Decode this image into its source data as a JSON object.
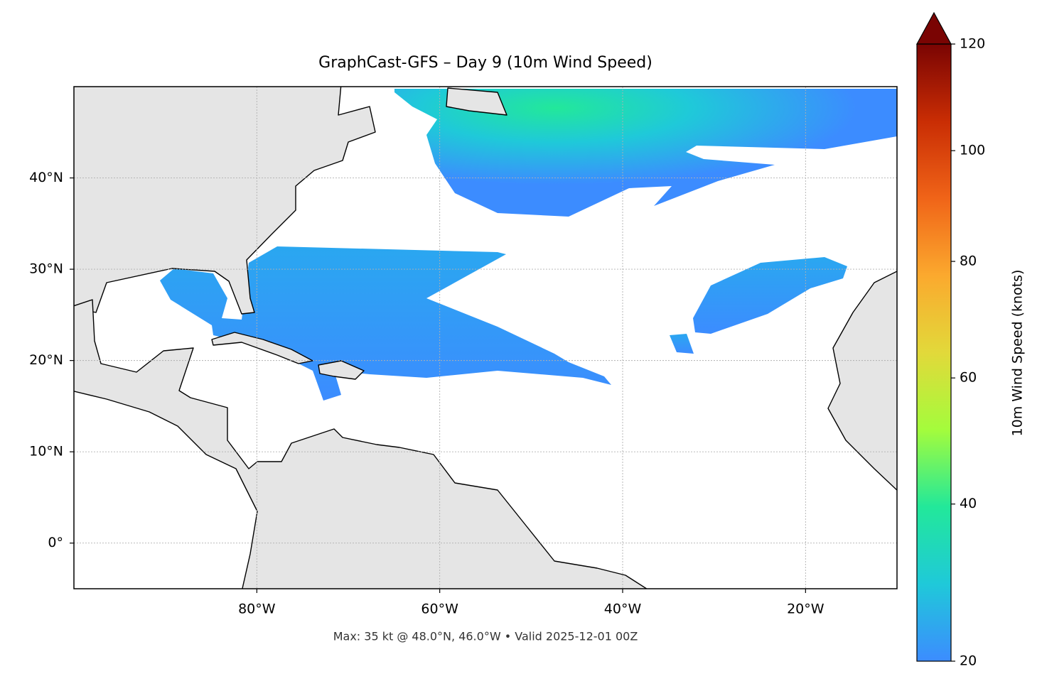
{
  "chart_data": {
    "type": "map",
    "title": "GraphCast-GFS – Day 9 (10m Wind Speed)",
    "xlim": [
      -100,
      -10
    ],
    "ylim": [
      -5,
      50
    ],
    "xticks": [
      {
        "value": -80,
        "label": "80°W"
      },
      {
        "value": -60,
        "label": "60°W"
      },
      {
        "value": -40,
        "label": "40°W"
      },
      {
        "value": -20,
        "label": "20°W"
      }
    ],
    "yticks": [
      {
        "value": 0,
        "label": "0°"
      },
      {
        "value": 10,
        "label": "10°N"
      },
      {
        "value": 20,
        "label": "20°N"
      },
      {
        "value": 30,
        "label": "30°N"
      },
      {
        "value": 40,
        "label": "40°N"
      }
    ],
    "grid": true,
    "annotation": "Max: 35 kt @ 48.0°N, 46.0°W • Valid 2025-12-01 00Z",
    "colorbar": {
      "label": "10m Wind Speed (knots)",
      "lim": [
        20,
        120
      ],
      "ticks": [
        20,
        40,
        60,
        80,
        100,
        120
      ],
      "gamma": 0.85,
      "extend": "max",
      "colors": [
        "#3c8cff",
        "#1fc9d9",
        "#22e89a",
        "#a4fc3c",
        "#e2d93a",
        "#fba92e",
        "#f06418",
        "#c92d04",
        "#7a0403"
      ]
    }
  }
}
